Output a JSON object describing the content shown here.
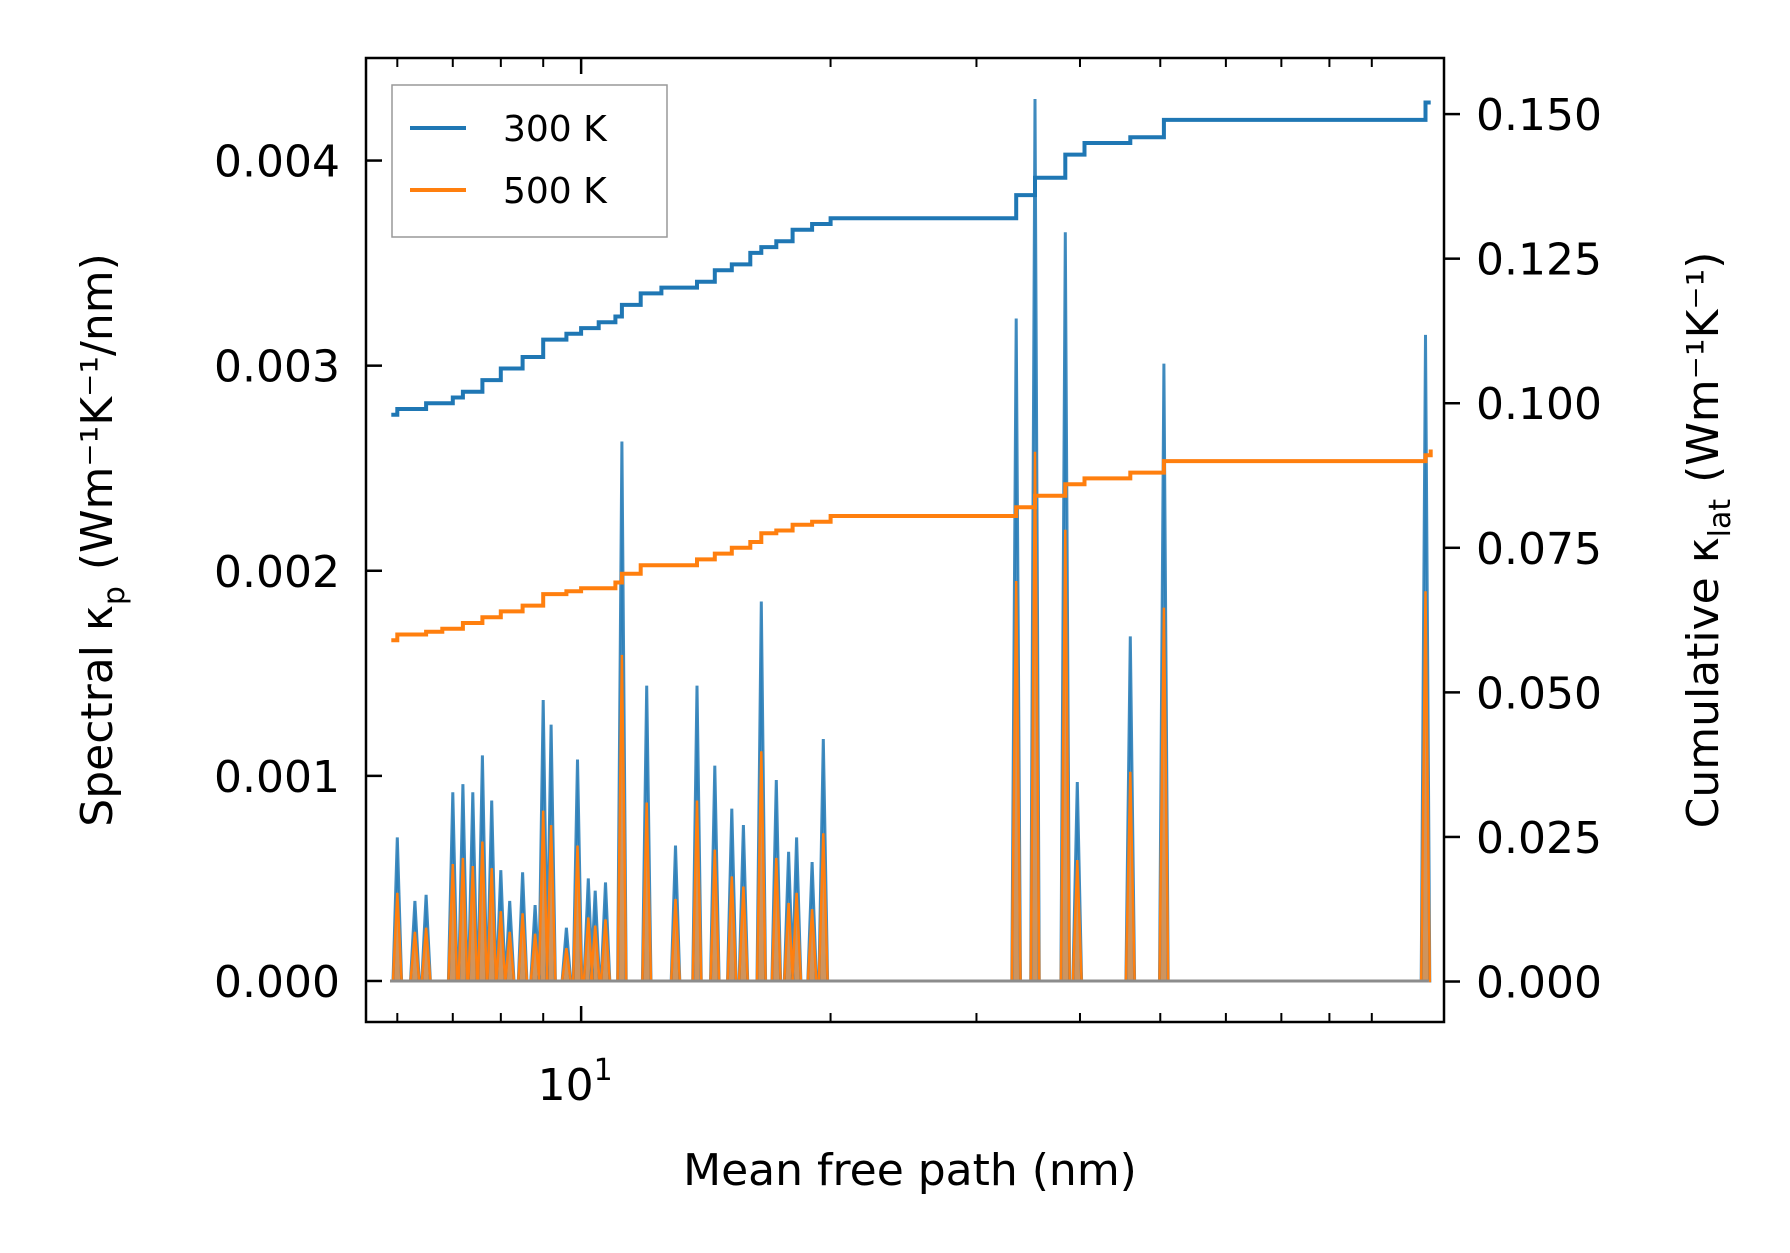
{
  "chart_data": {
    "type": "line",
    "xscale": "log",
    "xlabel": "Mean free path (nm)",
    "ylabel_left": {
      "main": "Spectral κ",
      "sub": "p",
      "unit": "(Wm⁻¹K⁻¹/nm)"
    },
    "ylabel_right": {
      "main": "Cumulative κ",
      "sub": "lat",
      "unit": "(Wm⁻¹K⁻¹)"
    },
    "xlim": [
      5.5,
      110
    ],
    "ylim_left": [
      -0.0002,
      0.0045
    ],
    "ylim_right": [
      -0.007,
      0.1597
    ],
    "x_ticks": [
      {
        "value": 10,
        "label": "10",
        "exp": "1"
      }
    ],
    "x_minor_ticks": [
      6,
      7,
      8,
      9,
      20,
      30,
      40,
      50,
      60,
      70,
      80,
      90
    ],
    "left_ticks": [
      {
        "value": 0.0,
        "label": "0.000"
      },
      {
        "value": 0.001,
        "label": "0.001"
      },
      {
        "value": 0.002,
        "label": "0.002"
      },
      {
        "value": 0.003,
        "label": "0.003"
      },
      {
        "value": 0.004,
        "label": "0.004"
      }
    ],
    "right_ticks": [
      {
        "value": 0.0,
        "label": "0.000"
      },
      {
        "value": 0.025,
        "label": "0.025"
      },
      {
        "value": 0.05,
        "label": "0.050"
      },
      {
        "value": 0.075,
        "label": "0.075"
      },
      {
        "value": 0.1,
        "label": "0.100"
      },
      {
        "value": 0.125,
        "label": "0.125"
      },
      {
        "value": 0.15,
        "label": "0.150"
      }
    ],
    "legend": {
      "position": "upper-left",
      "entries": [
        "300 K",
        "500 K"
      ]
    },
    "colors": {
      "blue": "#1f77b4",
      "orange": "#ff7f0e"
    },
    "spectral_peaks": [
      {
        "x": 6.0,
        "k300": 0.0007,
        "k500": 0.00043
      },
      {
        "x": 6.3,
        "k300": 0.00039,
        "k500": 0.00024
      },
      {
        "x": 6.5,
        "k300": 0.00042,
        "k500": 0.00026
      },
      {
        "x": 7.0,
        "k300": 0.00092,
        "k500": 0.00057
      },
      {
        "x": 7.2,
        "k300": 0.00096,
        "k500": 0.0006
      },
      {
        "x": 7.4,
        "k300": 0.00092,
        "k500": 0.00056
      },
      {
        "x": 7.6,
        "k300": 0.0011,
        "k500": 0.00068
      },
      {
        "x": 7.8,
        "k300": 0.00088,
        "k500": 0.00055
      },
      {
        "x": 8.0,
        "k300": 0.00054,
        "k500": 0.00034
      },
      {
        "x": 8.2,
        "k300": 0.00039,
        "k500": 0.00024
      },
      {
        "x": 8.5,
        "k300": 0.00053,
        "k500": 0.00033
      },
      {
        "x": 8.8,
        "k300": 0.00037,
        "k500": 0.00023
      },
      {
        "x": 9.0,
        "k300": 0.00137,
        "k500": 0.00083
      },
      {
        "x": 9.2,
        "k300": 0.00125,
        "k500": 0.00076
      },
      {
        "x": 9.6,
        "k300": 0.00026,
        "k500": 0.00016
      },
      {
        "x": 9.9,
        "k300": 0.00108,
        "k500": 0.00066
      },
      {
        "x": 10.2,
        "k300": 0.0005,
        "k500": 0.00031
      },
      {
        "x": 10.4,
        "k300": 0.00044,
        "k500": 0.00027
      },
      {
        "x": 10.7,
        "k300": 0.00048,
        "k500": 0.0003
      },
      {
        "x": 11.2,
        "k300": 0.00263,
        "k500": 0.00159
      },
      {
        "x": 12.0,
        "k300": 0.00144,
        "k500": 0.00087
      },
      {
        "x": 13.0,
        "k300": 0.00066,
        "k500": 0.0004
      },
      {
        "x": 13.8,
        "k300": 0.00144,
        "k500": 0.00088
      },
      {
        "x": 14.5,
        "k300": 0.00105,
        "k500": 0.00064
      },
      {
        "x": 15.2,
        "k300": 0.00084,
        "k500": 0.00051
      },
      {
        "x": 15.7,
        "k300": 0.00076,
        "k500": 0.00046
      },
      {
        "x": 16.5,
        "k300": 0.00185,
        "k500": 0.00112
      },
      {
        "x": 17.2,
        "k300": 0.00098,
        "k500": 0.0006
      },
      {
        "x": 17.8,
        "k300": 0.00063,
        "k500": 0.00038
      },
      {
        "x": 18.2,
        "k300": 0.0007,
        "k500": 0.00043
      },
      {
        "x": 19.0,
        "k300": 0.00058,
        "k500": 0.00035
      },
      {
        "x": 19.6,
        "k300": 0.00118,
        "k500": 0.00072
      },
      {
        "x": 33.5,
        "k300": 0.00323,
        "k500": 0.00195
      },
      {
        "x": 35.3,
        "k300": 0.0043,
        "k500": 0.00258
      },
      {
        "x": 38.4,
        "k300": 0.00365,
        "k500": 0.0022
      },
      {
        "x": 39.7,
        "k300": 0.00097,
        "k500": 0.00059
      },
      {
        "x": 46.0,
        "k300": 0.00168,
        "k500": 0.00102
      },
      {
        "x": 50.5,
        "k300": 0.00301,
        "k500": 0.00182
      },
      {
        "x": 104.5,
        "k300": 0.00315,
        "k500": 0.0019
      }
    ],
    "cumulative_300K": {
      "x": [
        5.9,
        6.0,
        6.3,
        6.5,
        6.8,
        7.0,
        7.2,
        7.6,
        8.0,
        8.5,
        9.0,
        9.6,
        10.0,
        10.5,
        11.0,
        11.2,
        11.8,
        12.5,
        13.8,
        14.5,
        15.2,
        16.0,
        16.5,
        17.2,
        18.0,
        19.0,
        20.0,
        33.5,
        35.3,
        38.4,
        40.5,
        46.0,
        50.5,
        104.5,
        106.0
      ],
      "y": [
        0.098,
        0.099,
        0.099,
        0.1,
        0.1,
        0.101,
        0.102,
        0.104,
        0.106,
        0.108,
        0.111,
        0.112,
        0.113,
        0.114,
        0.115,
        0.117,
        0.119,
        0.12,
        0.121,
        0.123,
        0.124,
        0.126,
        0.127,
        0.128,
        0.13,
        0.131,
        0.132,
        0.136,
        0.139,
        0.143,
        0.145,
        0.146,
        0.149,
        0.152,
        0.152
      ]
    },
    "cumulative_500K": {
      "x": [
        5.9,
        6.0,
        6.3,
        6.5,
        6.8,
        7.0,
        7.2,
        7.6,
        8.0,
        8.5,
        9.0,
        9.6,
        10.0,
        10.5,
        11.0,
        11.2,
        11.8,
        12.5,
        13.8,
        14.5,
        15.2,
        16.0,
        16.5,
        17.2,
        18.0,
        19.0,
        20.0,
        33.5,
        35.3,
        38.4,
        40.5,
        46.0,
        50.5,
        104.5,
        106.0
      ],
      "y": [
        0.059,
        0.06,
        0.06,
        0.0605,
        0.061,
        0.061,
        0.062,
        0.063,
        0.064,
        0.065,
        0.067,
        0.0675,
        0.068,
        0.068,
        0.069,
        0.0705,
        0.072,
        0.072,
        0.073,
        0.074,
        0.075,
        0.076,
        0.0775,
        0.078,
        0.079,
        0.0795,
        0.0805,
        0.082,
        0.084,
        0.086,
        0.087,
        0.088,
        0.09,
        0.091,
        0.092
      ]
    }
  }
}
